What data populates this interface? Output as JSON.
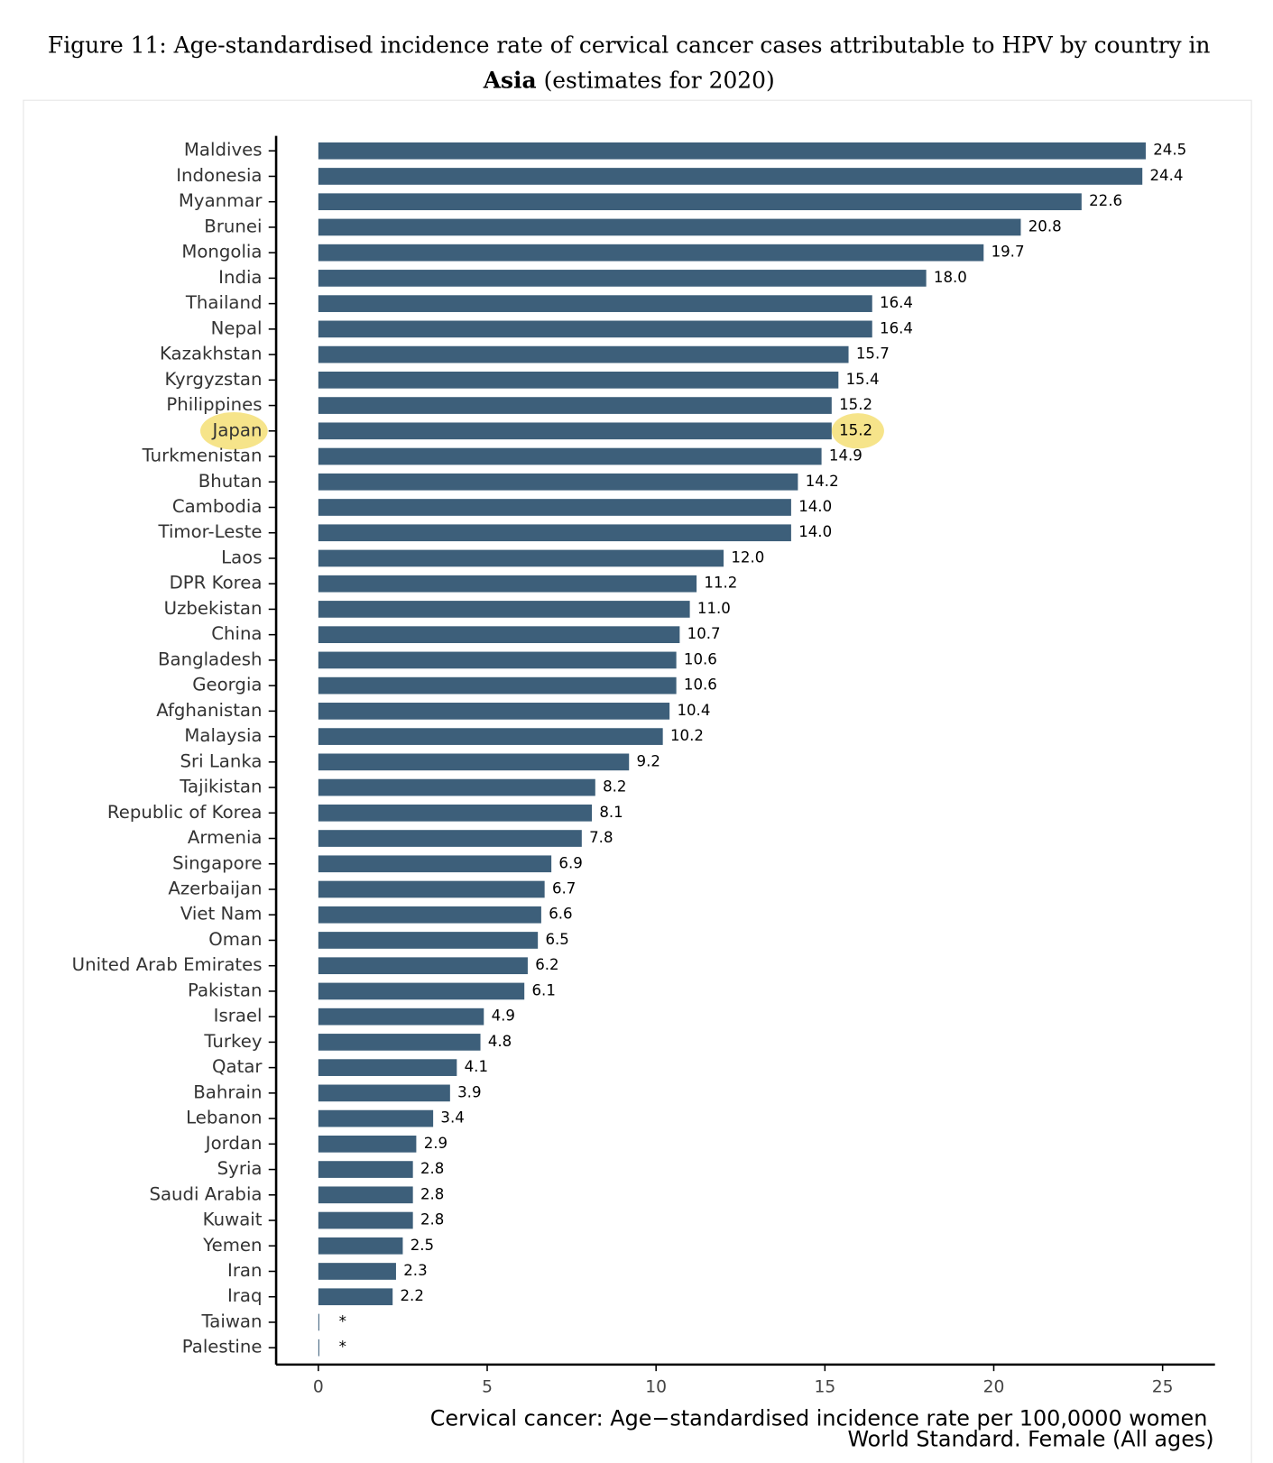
{
  "chart_data": {
    "type": "bar",
    "orientation": "horizontal",
    "title": {
      "line1": "Figure 11: Age-standardised incidence rate of cervical cancer cases attributable to HPV by country in",
      "bold": "Asia",
      "rest": "(estimates for 2020)"
    },
    "xlabel": [
      "Cervical cancer: Age−standardised incidence rate per 100,0000 women",
      "World Standard. Female (All ages)"
    ],
    "categories": [
      "Maldives",
      "Indonesia",
      "Myanmar",
      "Brunei",
      "Mongolia",
      "India",
      "Thailand",
      "Nepal",
      "Kazakhstan",
      "Kyrgyzstan",
      "Philippines",
      "Japan",
      "Turkmenistan",
      "Bhutan",
      "Cambodia",
      "Timor-Leste",
      "Laos",
      "DPR Korea",
      "Uzbekistan",
      "China",
      "Bangladesh",
      "Georgia",
      "Afghanistan",
      "Malaysia",
      "Sri Lanka",
      "Tajikistan",
      "Republic of Korea",
      "Armenia",
      "Singapore",
      "Azerbaijan",
      "Viet Nam",
      "Oman",
      "United Arab Emirates",
      "Pakistan",
      "Israel",
      "Turkey",
      "Qatar",
      "Bahrain",
      "Lebanon",
      "Jordan",
      "Syria",
      "Saudi Arabia",
      "Kuwait",
      "Yemen",
      "Iran",
      "Iraq",
      "Taiwan",
      "Palestine"
    ],
    "values": [
      24.5,
      24.4,
      22.6,
      20.8,
      19.7,
      18.0,
      16.4,
      16.4,
      15.7,
      15.4,
      15.2,
      15.2,
      14.9,
      14.2,
      14.0,
      14.0,
      12.0,
      11.2,
      11.0,
      10.7,
      10.6,
      10.6,
      10.4,
      10.2,
      9.2,
      8.2,
      8.1,
      7.8,
      6.9,
      6.7,
      6.6,
      6.5,
      6.2,
      6.1,
      4.9,
      4.8,
      4.1,
      3.9,
      3.4,
      2.9,
      2.8,
      2.8,
      2.8,
      2.5,
      2.3,
      2.2,
      0,
      0
    ],
    "value_labels": [
      "24.5",
      "24.4",
      "22.6",
      "20.8",
      "19.7",
      "18.0",
      "16.4",
      "16.4",
      "15.7",
      "15.4",
      "15.2",
      "15.2",
      "14.9",
      "14.2",
      "14.0",
      "14.0",
      "12.0",
      "11.2",
      "11.0",
      "10.7",
      "10.6",
      "10.6",
      "10.4",
      "10.2",
      "9.2",
      "8.2",
      "8.1",
      "7.8",
      "6.9",
      "6.7",
      "6.6",
      "6.5",
      "6.2",
      "6.1",
      "4.9",
      "4.8",
      "4.1",
      "3.9",
      "3.4",
      "2.9",
      "2.8",
      "2.8",
      "2.8",
      "2.5",
      "2.3",
      "2.2",
      "*",
      "*"
    ],
    "color": "#3d5f7a",
    "highlight": "Japan",
    "highlight_color": "#f6e48a",
    "xlim": [
      -1.25,
      26.55
    ],
    "xticks": [
      0,
      5,
      10,
      15,
      20,
      25
    ]
  }
}
